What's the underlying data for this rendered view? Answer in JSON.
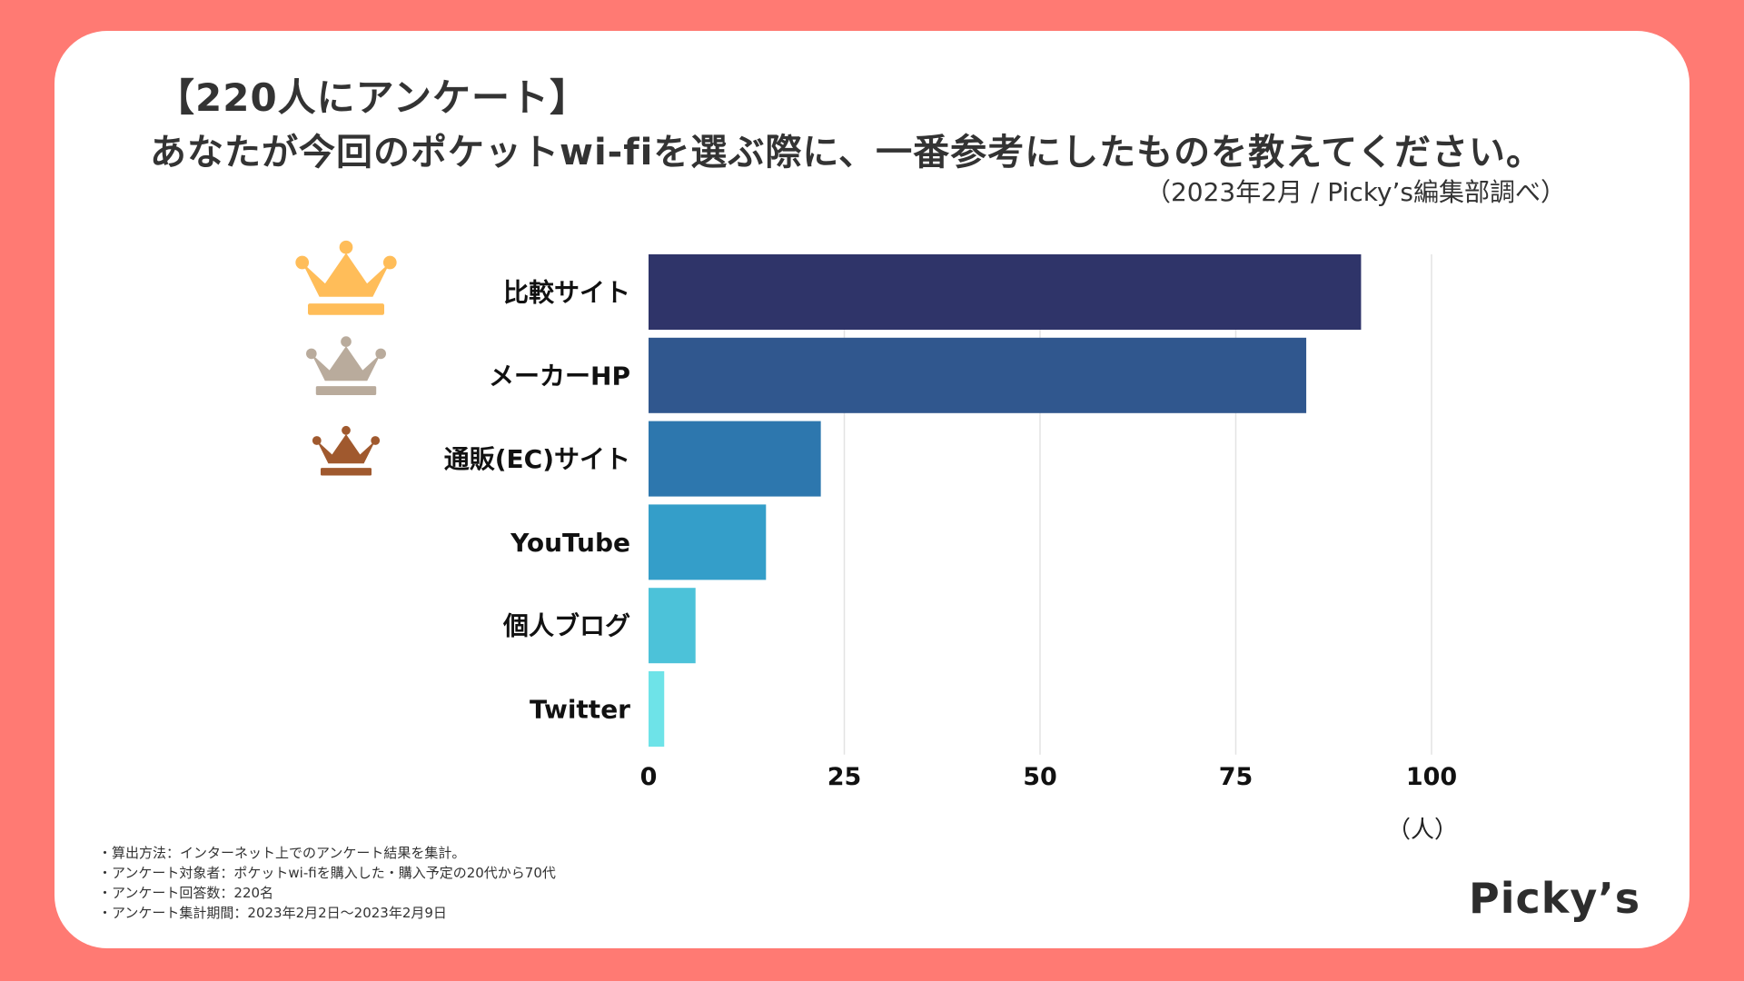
{
  "header": {
    "title": "【220人にアンケート】",
    "question": "あなたが今回のポケットwi-fiを選ぶ際に、一番参考にしたものを教えてください。",
    "source": "（2023年2月 / Picky’s編集部調べ）"
  },
  "chart_data": {
    "type": "bar",
    "orientation": "horizontal",
    "categories": [
      "比較サイト",
      "メーカーHP",
      "通販(EC)サイト",
      "YouTube",
      "個人ブログ",
      "Twitter"
    ],
    "values": [
      91,
      84,
      22,
      15,
      6,
      2
    ],
    "bar_colors": [
      "#2f3469",
      "#30578e",
      "#2d77ae",
      "#349ec9",
      "#4cc2d9",
      "#6ee3e8"
    ],
    "xlim": [
      0,
      100
    ],
    "xticks": [
      0,
      25,
      50,
      75,
      100
    ],
    "xlabel": "（人）",
    "grid": true,
    "rank_icons": [
      "gold-crown-icon",
      "silver-crown-icon",
      "bronze-crown-icon"
    ],
    "rank_colors": [
      "#ffbd59",
      "#b9ab9c",
      "#a0592e"
    ]
  },
  "notes": [
    "・算出方法：インターネット上でのアンケート結果を集計。",
    "・アンケート対象者：ポケットwi-fiを購入した・購入予定の20代から70代",
    "・アンケート回答数：220名",
    "・アンケート集計期間：2023年2月2日〜2023年2月9日"
  ],
  "brand": {
    "logo_text": "Picky’s",
    "frame_color": "#ff7a73"
  }
}
